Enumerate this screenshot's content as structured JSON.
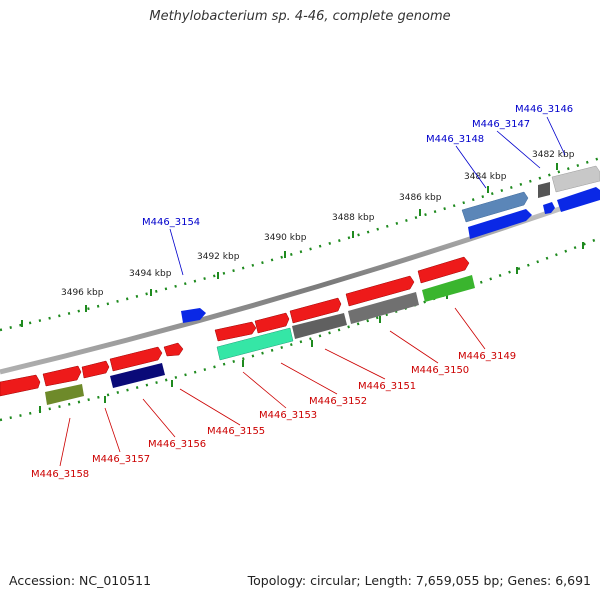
{
  "title": "Methylobacterium sp. 4-46, complete genome",
  "footer": {
    "accession": "Accession: NC_010511",
    "topology": "Topology: circular; Length: 7,659,055 bp; Genes: 6,691"
  },
  "scale_ticks": [
    "3482 kbp",
    "3484 kbp",
    "3486 kbp",
    "3488 kbp",
    "3490 kbp",
    "3492 kbp",
    "3494 kbp",
    "3496 kbp"
  ],
  "colors": {
    "backbone": "#8a8a8a",
    "tick": "#1e8a1e",
    "forward_label": "#0000cc",
    "reverse_label": "#cc0000"
  },
  "forward_labels": [
    "M446_3146",
    "M446_3147",
    "M446_3148",
    "M446_3154"
  ],
  "reverse_labels": [
    "M446_3149",
    "M446_3150",
    "M446_3151",
    "M446_3152",
    "M446_3153",
    "M446_3155",
    "M446_3156",
    "M446_3157",
    "M446_3158"
  ]
}
